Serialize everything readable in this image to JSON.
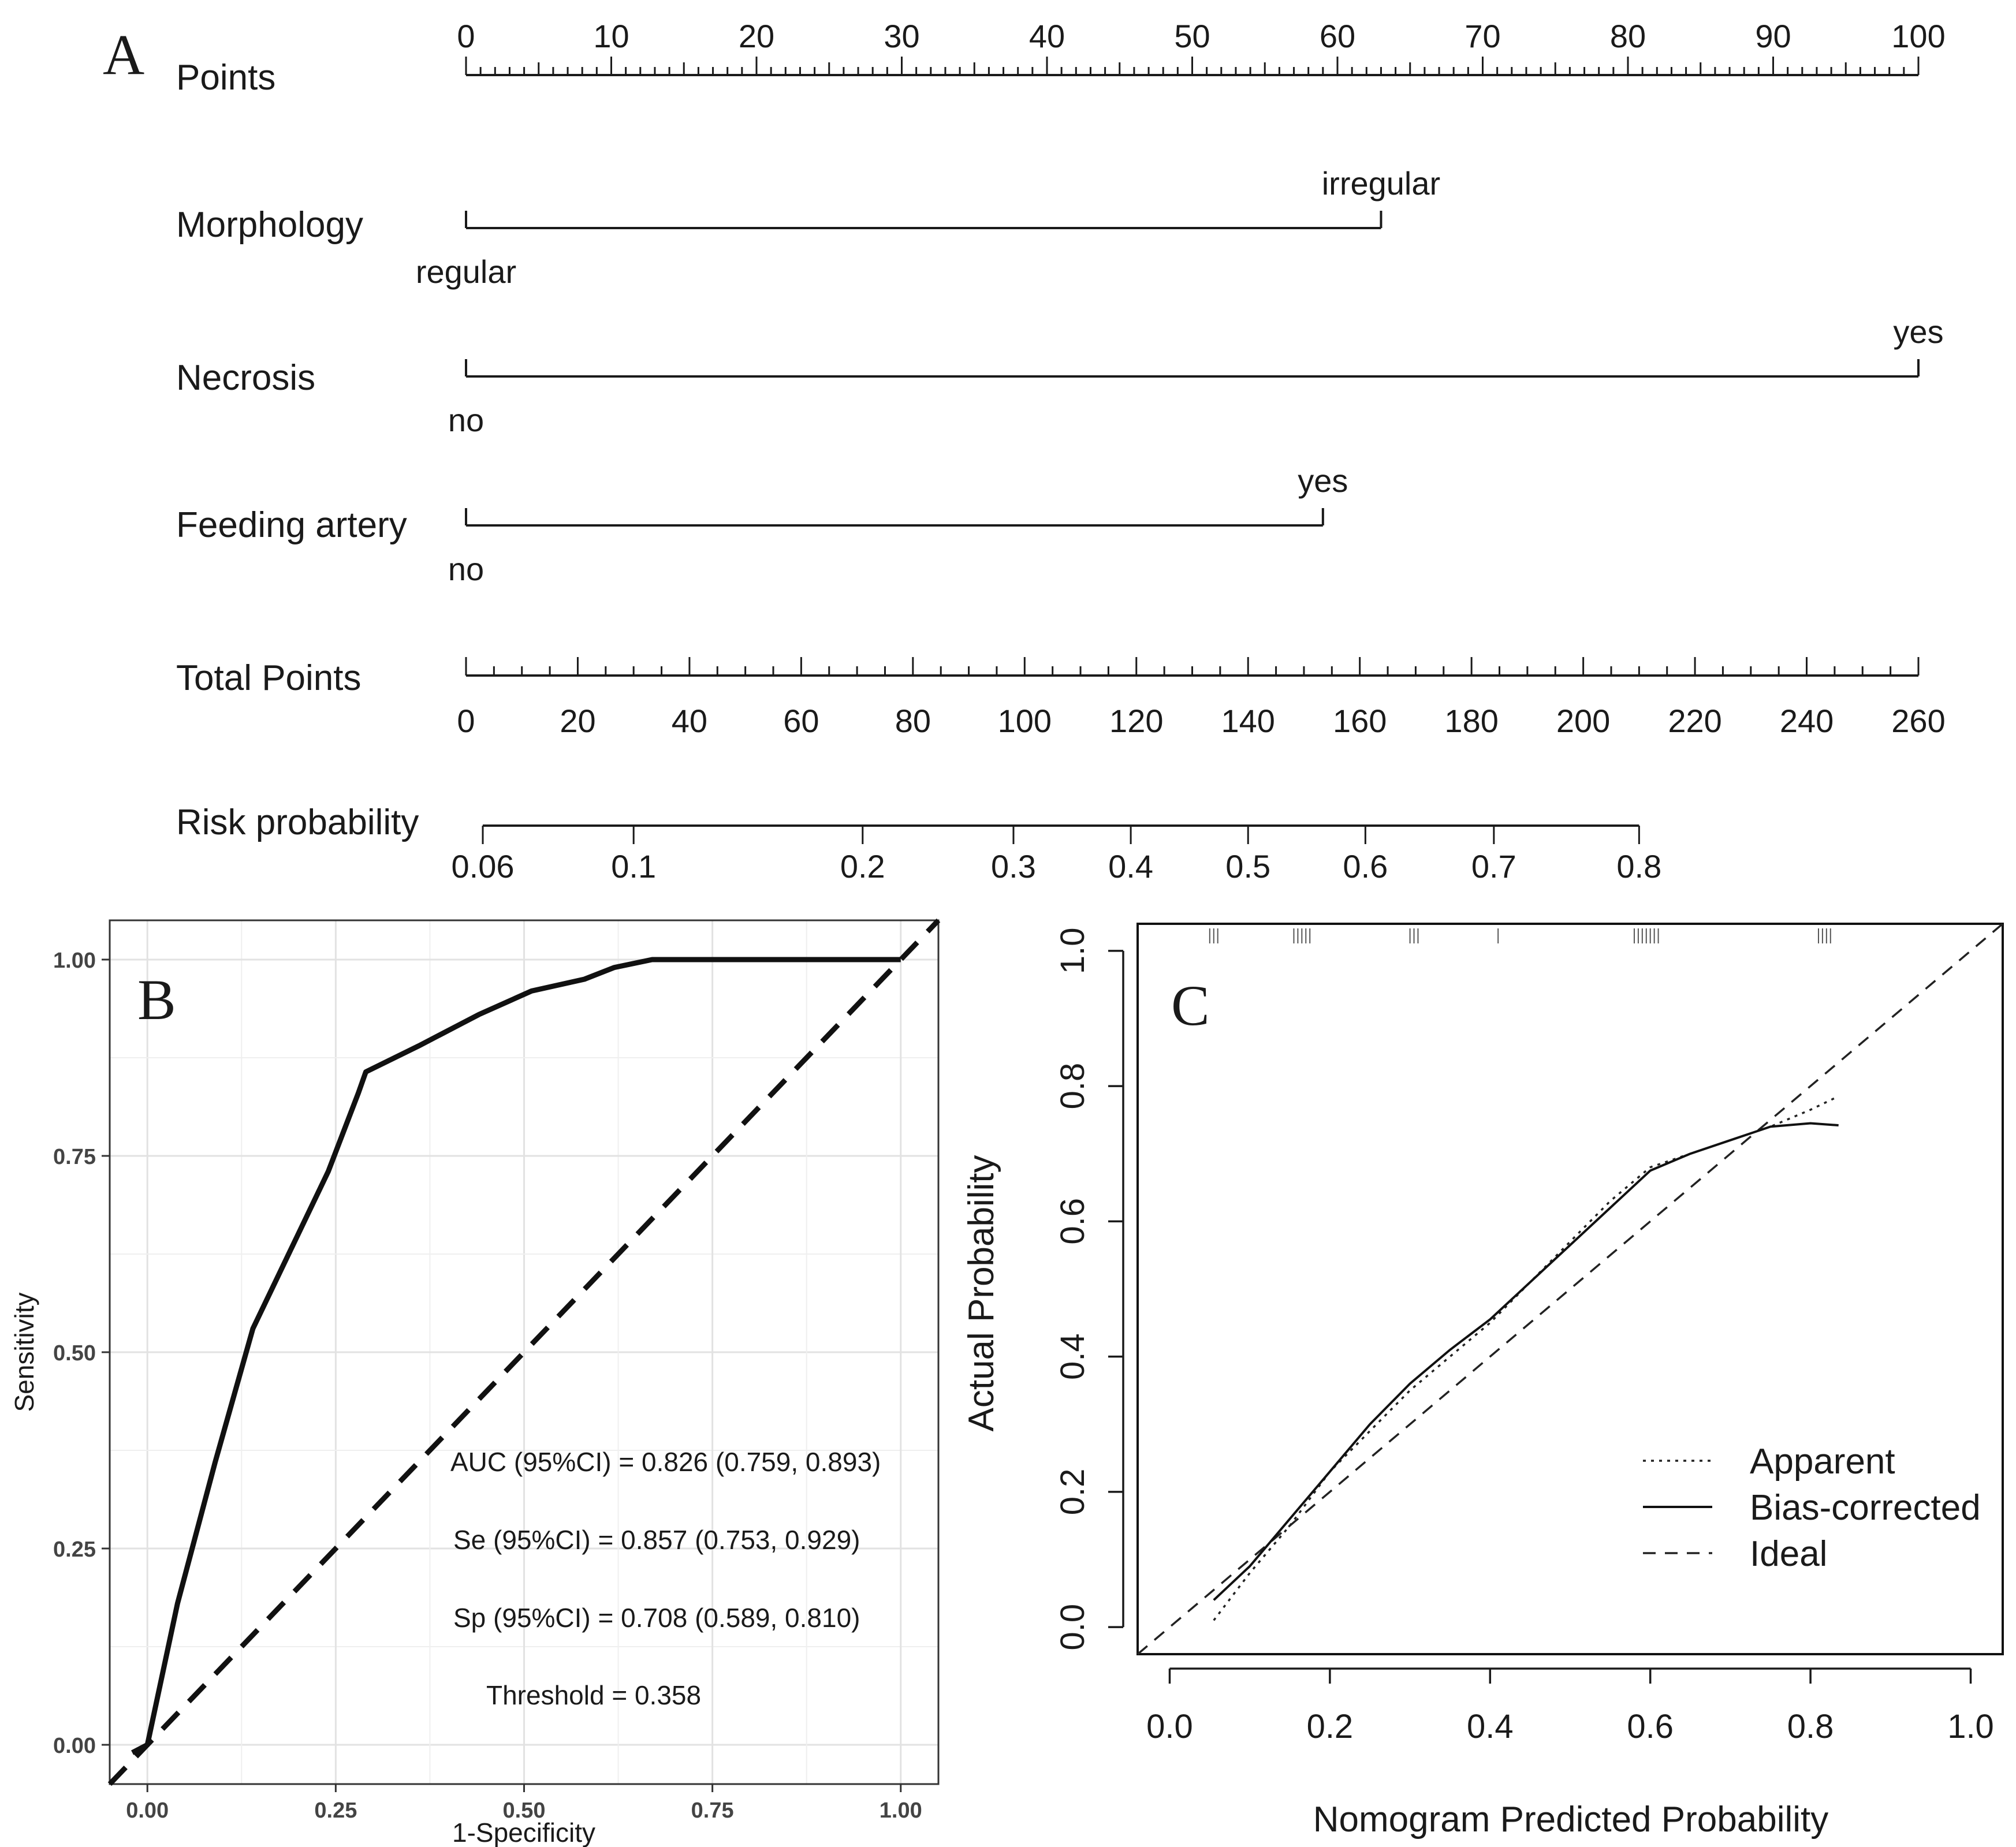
{
  "chart_data": [
    {
      "type": "nomogram",
      "panel": "A",
      "points_axis": {
        "label": "Points",
        "min": 0,
        "max": 100,
        "ticks": [
          0,
          10,
          20,
          30,
          40,
          50,
          60,
          70,
          80,
          90,
          100
        ]
      },
      "predictors": [
        {
          "label": "Morphology",
          "levels": [
            {
              "name": "regular",
              "points": 0
            },
            {
              "name": "irregular",
              "points": 63
            }
          ]
        },
        {
          "label": "Necrosis",
          "levels": [
            {
              "name": "no",
              "points": 0
            },
            {
              "name": "yes",
              "points": 100
            }
          ]
        },
        {
          "label": "Feeding artery",
          "levels": [
            {
              "name": "no",
              "points": 0
            },
            {
              "name": "yes",
              "points": 59
            }
          ]
        }
      ],
      "total_points_axis": {
        "label": "Total Points",
        "min": 0,
        "max": 260,
        "ticks": [
          0,
          20,
          40,
          60,
          80,
          100,
          120,
          140,
          160,
          180,
          200,
          220,
          240,
          260
        ]
      },
      "risk_axis": {
        "label": "Risk probability",
        "ticks": [
          {
            "label": "0.06",
            "total_points": 3
          },
          {
            "label": "0.1",
            "total_points": 30
          },
          {
            "label": "0.2",
            "total_points": 71
          },
          {
            "label": "0.3",
            "total_points": 98
          },
          {
            "label": "0.4",
            "total_points": 119
          },
          {
            "label": "0.5",
            "total_points": 140
          },
          {
            "label": "0.6",
            "total_points": 161
          },
          {
            "label": "0.7",
            "total_points": 184
          },
          {
            "label": "0.8",
            "total_points": 210
          }
        ]
      }
    },
    {
      "type": "line",
      "panel": "B",
      "xlabel": "1-Specificity",
      "ylabel": "Sensitivity",
      "xlim": [
        -0.05,
        1.05
      ],
      "ylim": [
        -0.05,
        1.05
      ],
      "xticks": [
        "0.00",
        "0.25",
        "0.50",
        "0.75",
        "1.00"
      ],
      "yticks": [
        "0.00",
        "0.25",
        "0.50",
        "0.75",
        "1.00"
      ],
      "grid": true,
      "roc_curve": {
        "x": [
          -0.02,
          0.0,
          0.04,
          0.09,
          0.14,
          0.19,
          0.24,
          0.28,
          0.29,
          0.36,
          0.44,
          0.51,
          0.58,
          0.62,
          0.67,
          0.75,
          0.85,
          1.0
        ],
        "y": [
          -0.01,
          0.0,
          0.18,
          0.36,
          0.53,
          0.63,
          0.73,
          0.83,
          0.857,
          0.89,
          0.93,
          0.96,
          0.975,
          0.99,
          1.0,
          1.0,
          1.0,
          1.0
        ]
      },
      "reference_line": {
        "x": [
          -0.05,
          1.05
        ],
        "y": [
          -0.05,
          1.05
        ]
      },
      "annotations": [
        "AUC (95%CI) = 0.826 (0.759, 0.893)",
        "Se (95%CI) = 0.857 (0.753, 0.929)",
        "Sp (95%CI) = 0.708 (0.589, 0.810)",
        "Threshold = 0.358"
      ]
    },
    {
      "type": "line",
      "panel": "C",
      "xlabel": "Nomogram Predicted Probability",
      "ylabel": "Actual Probability",
      "xlim": [
        -0.04,
        1.04
      ],
      "ylim": [
        -0.04,
        1.04
      ],
      "xticks": [
        "0.0",
        "0.2",
        "0.4",
        "0.6",
        "0.8",
        "1.0"
      ],
      "yticks": [
        "0.0",
        "0.2",
        "0.4",
        "0.6",
        "0.8",
        "1.0"
      ],
      "series": [
        {
          "name": "Apparent",
          "style": "dotted",
          "x": [
            0.055,
            0.1,
            0.15,
            0.2,
            0.25,
            0.3,
            0.35,
            0.4,
            0.45,
            0.5,
            0.55,
            0.6,
            0.65,
            0.7,
            0.75,
            0.8,
            0.835
          ],
          "y": [
            0.01,
            0.08,
            0.15,
            0.23,
            0.29,
            0.35,
            0.4,
            0.45,
            0.51,
            0.57,
            0.63,
            0.68,
            0.7,
            0.72,
            0.74,
            0.765,
            0.785
          ]
        },
        {
          "name": "Bias-corrected",
          "style": "solid",
          "x": [
            0.055,
            0.1,
            0.15,
            0.2,
            0.25,
            0.3,
            0.35,
            0.4,
            0.45,
            0.5,
            0.55,
            0.6,
            0.65,
            0.7,
            0.75,
            0.8,
            0.835
          ],
          "y": [
            0.04,
            0.09,
            0.16,
            0.23,
            0.3,
            0.36,
            0.41,
            0.455,
            0.51,
            0.565,
            0.62,
            0.675,
            0.7,
            0.72,
            0.74,
            0.745,
            0.742
          ]
        },
        {
          "name": "Ideal",
          "style": "dashed",
          "x": [
            -0.04,
            1.04
          ],
          "y": [
            -0.04,
            1.04
          ]
        }
      ],
      "rug_x": [
        0.05,
        0.055,
        0.06,
        0.155,
        0.16,
        0.165,
        0.17,
        0.175,
        0.3,
        0.305,
        0.31,
        0.41,
        0.58,
        0.585,
        0.59,
        0.595,
        0.6,
        0.605,
        0.61,
        0.81,
        0.815,
        0.82,
        0.825
      ],
      "legend_position": "bottom-right"
    }
  ]
}
